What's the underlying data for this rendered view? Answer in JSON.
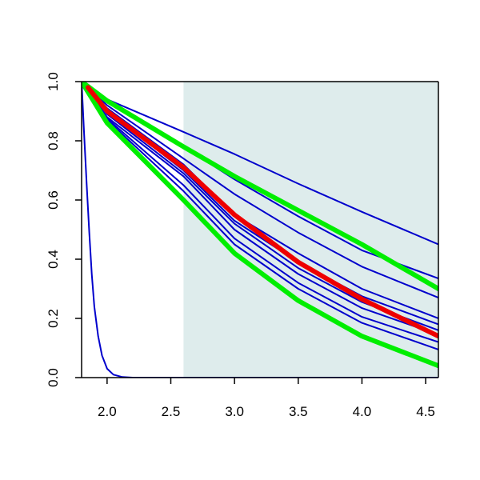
{
  "chart_data": {
    "type": "line",
    "title": "",
    "xlabel": "",
    "ylabel": "",
    "xlim": [
      1.8,
      4.6
    ],
    "ylim": [
      0.0,
      1.0
    ],
    "x_ticks": [
      "2.0",
      "2.5",
      "3.0",
      "3.5",
      "4.0",
      "4.5"
    ],
    "y_ticks": [
      "0.0",
      "0.2",
      "0.4",
      "0.6",
      "0.8",
      "1.0"
    ],
    "grid": false,
    "legend": "none",
    "shaded_region": {
      "x_from": 2.6,
      "x_to": 4.6,
      "color": "#deecec"
    },
    "series": [
      {
        "color": "#0000cc",
        "width": "thin",
        "points": [
          [
            1.8,
            1.0
          ],
          [
            1.82,
            0.82
          ],
          [
            1.84,
            0.65
          ],
          [
            1.86,
            0.49
          ],
          [
            1.88,
            0.35
          ],
          [
            1.9,
            0.24
          ],
          [
            1.93,
            0.14
          ],
          [
            1.96,
            0.075
          ],
          [
            2.0,
            0.03
          ],
          [
            2.05,
            0.01
          ],
          [
            2.12,
            0.002
          ],
          [
            2.2,
            0.0
          ],
          [
            4.6,
            0.0
          ]
        ]
      },
      {
        "color": "#0000cc",
        "width": "thin",
        "points": [
          [
            1.8,
            1.0
          ],
          [
            2.0,
            0.94
          ],
          [
            2.6,
            0.83
          ],
          [
            3.0,
            0.755
          ],
          [
            3.5,
            0.655
          ],
          [
            4.0,
            0.56
          ],
          [
            4.6,
            0.45
          ]
        ]
      },
      {
        "color": "#0000cc",
        "width": "thin",
        "points": [
          [
            1.8,
            1.0
          ],
          [
            2.0,
            0.93
          ],
          [
            2.6,
            0.78
          ],
          [
            3.0,
            0.67
          ],
          [
            3.5,
            0.545
          ],
          [
            4.0,
            0.43
          ],
          [
            4.6,
            0.335
          ]
        ]
      },
      {
        "color": "#0000cc",
        "width": "thin",
        "points": [
          [
            1.8,
            1.0
          ],
          [
            2.0,
            0.92
          ],
          [
            2.6,
            0.74
          ],
          [
            3.0,
            0.62
          ],
          [
            3.5,
            0.49
          ],
          [
            4.0,
            0.375
          ],
          [
            4.6,
            0.27
          ]
        ]
      },
      {
        "color": "#0000cc",
        "width": "thin",
        "points": [
          [
            1.8,
            1.0
          ],
          [
            2.0,
            0.91
          ],
          [
            2.6,
            0.72
          ],
          [
            3.0,
            0.55
          ],
          [
            3.5,
            0.42
          ],
          [
            4.0,
            0.3
          ],
          [
            4.6,
            0.2
          ]
        ]
      },
      {
        "color": "#0000cc",
        "width": "thin",
        "points": [
          [
            1.8,
            1.0
          ],
          [
            2.0,
            0.9
          ],
          [
            2.6,
            0.7
          ],
          [
            3.0,
            0.53
          ],
          [
            3.5,
            0.39
          ],
          [
            4.0,
            0.275
          ],
          [
            4.6,
            0.18
          ]
        ]
      },
      {
        "color": "#0000cc",
        "width": "thin",
        "points": [
          [
            1.8,
            1.0
          ],
          [
            2.0,
            0.89
          ],
          [
            2.6,
            0.69
          ],
          [
            3.0,
            0.52
          ],
          [
            3.5,
            0.37
          ],
          [
            4.0,
            0.255
          ],
          [
            4.6,
            0.16
          ]
        ]
      },
      {
        "color": "#0000cc",
        "width": "thin",
        "points": [
          [
            1.8,
            1.0
          ],
          [
            2.0,
            0.88
          ],
          [
            2.6,
            0.68
          ],
          [
            3.0,
            0.5
          ],
          [
            3.5,
            0.35
          ],
          [
            4.0,
            0.235
          ],
          [
            4.6,
            0.145
          ]
        ]
      },
      {
        "color": "#0000cc",
        "width": "thin",
        "points": [
          [
            1.8,
            1.0
          ],
          [
            2.0,
            0.875
          ],
          [
            2.6,
            0.65
          ],
          [
            3.0,
            0.47
          ],
          [
            3.5,
            0.32
          ],
          [
            4.0,
            0.205
          ],
          [
            4.6,
            0.12
          ]
        ]
      },
      {
        "color": "#0000cc",
        "width": "thin",
        "points": [
          [
            1.8,
            1.0
          ],
          [
            2.0,
            0.87
          ],
          [
            2.6,
            0.63
          ],
          [
            3.0,
            0.45
          ],
          [
            3.5,
            0.3
          ],
          [
            4.0,
            0.185
          ],
          [
            4.6,
            0.095
          ]
        ]
      },
      {
        "color": "#00ee00",
        "width": "thick",
        "points": [
          [
            1.8,
            1.0
          ],
          [
            2.0,
            0.935
          ],
          [
            2.6,
            0.78
          ],
          [
            3.0,
            0.68
          ],
          [
            3.5,
            0.565
          ],
          [
            4.0,
            0.45
          ],
          [
            4.6,
            0.3
          ]
        ]
      },
      {
        "color": "#00ee00",
        "width": "thick",
        "points": [
          [
            1.8,
            1.0
          ],
          [
            2.0,
            0.86
          ],
          [
            2.6,
            0.6
          ],
          [
            3.0,
            0.42
          ],
          [
            3.5,
            0.26
          ],
          [
            4.0,
            0.14
          ],
          [
            4.6,
            0.04
          ]
        ]
      },
      {
        "color": "#ee0000",
        "width": "thick",
        "points": [
          [
            1.85,
            0.98
          ],
          [
            2.0,
            0.9
          ],
          [
            2.6,
            0.71
          ],
          [
            3.0,
            0.55
          ],
          [
            3.5,
            0.39
          ],
          [
            4.0,
            0.265
          ],
          [
            4.6,
            0.14
          ]
        ]
      }
    ]
  }
}
